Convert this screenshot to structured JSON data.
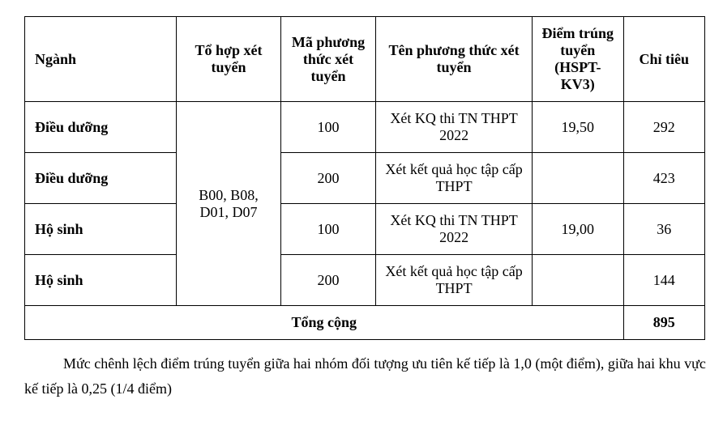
{
  "table": {
    "headers": {
      "nganh": "Ngành",
      "tohop": "Tổ hợp xét tuyển",
      "ma": "Mã phương thức xét tuyển",
      "ten": "Tên phương thức xét tuyển",
      "diem": "Điểm trúng tuyển (HSPT-KV3)",
      "chitieu": "Chỉ tiêu"
    },
    "tohop_shared": "B00, B08, D01, D07",
    "rows": [
      {
        "nganh": "Điều dưỡng",
        "ma": "100",
        "ten": "Xét KQ thi TN THPT 2022",
        "diem": "19,50",
        "chitieu": "292"
      },
      {
        "nganh": "Điều dưỡng",
        "ma": "200",
        "ten": "Xét kết quả học tập cấp THPT",
        "diem": "",
        "chitieu": "423"
      },
      {
        "nganh": "Hộ sinh",
        "ma": "100",
        "ten": "Xét KQ thi TN THPT 2022",
        "diem": "19,00",
        "chitieu": "36"
      },
      {
        "nganh": "Hộ sinh",
        "ma": "200",
        "ten": "Xét kết quả học tập cấp THPT",
        "diem": "",
        "chitieu": "144"
      }
    ],
    "total_label": "Tổng cộng",
    "total_value": "895"
  },
  "note": "Mức chênh lệch điểm trúng tuyển giữa hai nhóm đối tượng ưu tiên kế tiếp là 1,0 (một điểm), giữa hai khu vực kế tiếp là 0,25 (1/4 điểm)"
}
